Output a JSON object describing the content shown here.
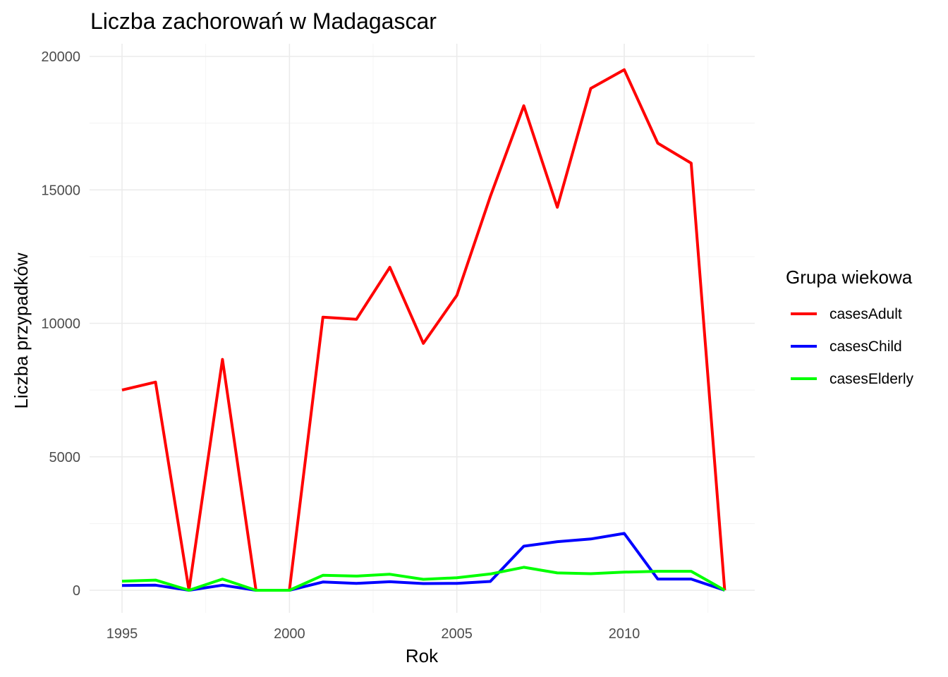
{
  "chart_data": {
    "type": "line",
    "title": "Liczba zachorowań w Madagascar",
    "xlabel": "Rok",
    "ylabel": "Liczba przypadków",
    "xlim": [
      1995,
      2013
    ],
    "ylim": [
      0,
      20000
    ],
    "x_ticks": [
      1995,
      2000,
      2005,
      2010
    ],
    "y_ticks": [
      0,
      5000,
      10000,
      15000,
      20000
    ],
    "grid": true,
    "legend": {
      "title": "Grupa wiekowa",
      "position": "right"
    },
    "x": [
      1995,
      1996,
      1997,
      1998,
      1999,
      2000,
      2001,
      2002,
      2003,
      2004,
      2005,
      2006,
      2007,
      2008,
      2009,
      2010,
      2011,
      2012,
      2013
    ],
    "series": [
      {
        "name": "casesAdult",
        "color": "#ff0000",
        "values": [
          7500,
          7800,
          0,
          8650,
          0,
          0,
          10230,
          10150,
          12100,
          9250,
          11050,
          14750,
          18150,
          14350,
          18800,
          19500,
          16750,
          16000,
          0
        ]
      },
      {
        "name": "casesChild",
        "color": "#0000ff",
        "values": [
          180,
          190,
          0,
          190,
          0,
          0,
          310,
          260,
          320,
          250,
          260,
          330,
          1650,
          1820,
          1920,
          2130,
          420,
          420,
          0
        ]
      },
      {
        "name": "casesElderly",
        "color": "#00ff00",
        "values": [
          340,
          380,
          0,
          420,
          0,
          0,
          560,
          530,
          600,
          410,
          470,
          610,
          860,
          650,
          620,
          680,
          710,
          710,
          0
        ]
      }
    ]
  }
}
